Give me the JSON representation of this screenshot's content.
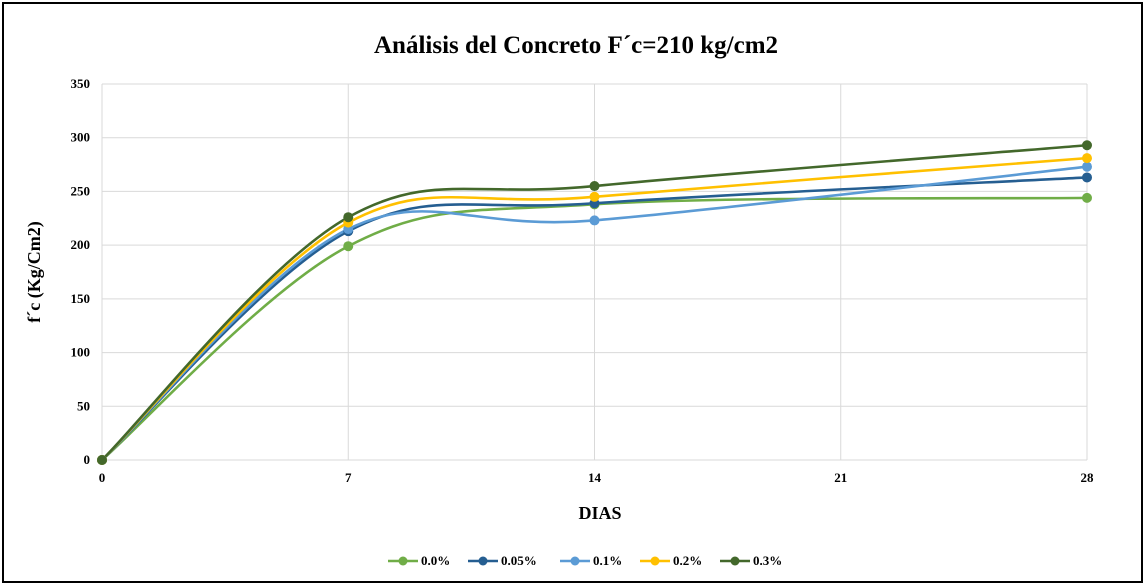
{
  "chart_data": {
    "type": "line",
    "title": "Análisis del Concreto F´c=210 kg/cm2",
    "xlabel": "DIAS",
    "ylabel": "f´c  (Kg/Cm2)",
    "x": [
      0,
      7,
      14,
      28
    ],
    "x_ticks": [
      "0",
      "7",
      "14",
      "21",
      "28"
    ],
    "x_tick_values": [
      0,
      7,
      14,
      21,
      28
    ],
    "xlim": [
      0,
      28
    ],
    "ylim": [
      0,
      350
    ],
    "y_ticks": [
      "0",
      "50",
      "100",
      "150",
      "200",
      "250",
      "300",
      "350"
    ],
    "y_tick_values": [
      0,
      50,
      100,
      150,
      200,
      250,
      300,
      350
    ],
    "grid": true,
    "smooth": true,
    "legend_position": "bottom",
    "series": [
      {
        "name": "0.0%",
        "color": "#70AD47",
        "values": [
          0,
          199,
          238,
          244
        ]
      },
      {
        "name": "0.05%",
        "color": "#255E91",
        "values": [
          0,
          213,
          239,
          263
        ]
      },
      {
        "name": "0.1%",
        "color": "#5B9BD5",
        "values": [
          0,
          215,
          223,
          273
        ]
      },
      {
        "name": "0.2%",
        "color": "#FFC000",
        "values": [
          0,
          221,
          245,
          281
        ]
      },
      {
        "name": "0.3%",
        "color": "#43682B",
        "values": [
          0,
          226,
          255,
          293
        ]
      }
    ]
  }
}
